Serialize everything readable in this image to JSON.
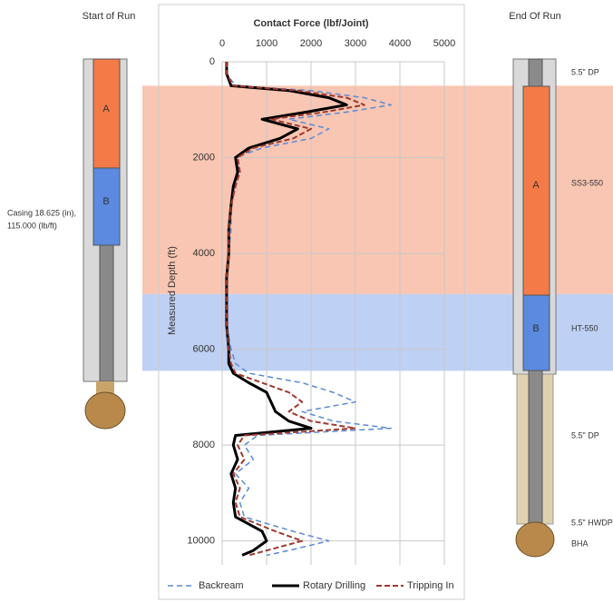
{
  "chart_data": {
    "type": "line",
    "title": "Contact Force (lbf/Joint)",
    "y_label": "Measured Depth (ft)",
    "x": [
      0,
      250,
      500,
      600,
      750,
      900,
      1050,
      1200,
      1400,
      1600,
      1800,
      2000,
      2300,
      2600,
      3000,
      3500,
      4000,
      4500,
      5000,
      5500,
      6000,
      6300,
      6500,
      6700,
      6900,
      7100,
      7300,
      7500,
      7650,
      7800,
      8000,
      8300,
      8600,
      8900,
      9200,
      9500,
      9800,
      10000,
      10200,
      10300
    ],
    "series": [
      {
        "name": "Backream",
        "color": "#5b8bd6",
        "values": [
          100,
          100,
          300,
          2000,
          3200,
          3800,
          2800,
          1500,
          2400,
          2000,
          900,
          300,
          400,
          300,
          200,
          200,
          150,
          100,
          100,
          100,
          200,
          300,
          600,
          1800,
          2500,
          3000,
          1800,
          2500,
          3800,
          800,
          500,
          700,
          300,
          600,
          400,
          500,
          1600,
          2400,
          1500,
          1000
        ]
      },
      {
        "name": "Rotary Drilling",
        "color": "#000000",
        "values": [
          100,
          100,
          200,
          1500,
          2400,
          2800,
          1900,
          900,
          1700,
          1300,
          600,
          300,
          350,
          250,
          200,
          150,
          150,
          100,
          100,
          100,
          150,
          150,
          250,
          600,
          1000,
          1100,
          1200,
          1500,
          2000,
          300,
          250,
          350,
          200,
          300,
          250,
          300,
          900,
          1000,
          700,
          450
        ]
      },
      {
        "name": "Tripping In",
        "color": "#a0392f",
        "values": [
          100,
          100,
          250,
          1700,
          2800,
          3200,
          2300,
          1100,
          2000,
          1600,
          700,
          350,
          400,
          300,
          200,
          150,
          150,
          100,
          100,
          100,
          150,
          200,
          300,
          900,
          1500,
          1800,
          1500,
          2000,
          3000,
          500,
          350,
          500,
          250,
          400,
          300,
          400,
          1200,
          1800,
          1000,
          600
        ]
      }
    ],
    "force_lim": [
      0,
      5000
    ],
    "force_ticks": [
      0,
      1000,
      2000,
      3000,
      4000,
      5000
    ],
    "depth_lim": [
      0,
      10500
    ],
    "depth_ticks": [
      0,
      2000,
      4000,
      6000,
      8000,
      10000
    ],
    "grid": true,
    "bands": [
      {
        "from": 500,
        "to": 4850,
        "color": "#f8c6b2"
      },
      {
        "from": 4850,
        "to": 6450,
        "color": "#bed0f3"
      }
    ]
  },
  "diagram": {
    "start_title": "Start of Run",
    "end_title": "End Of Run",
    "casing_label": [
      "Casing 18.625 (in),",
      "115.000 (lb/ft)"
    ],
    "left_sections": [
      "A",
      "B"
    ],
    "right_sections": [
      "A",
      "B"
    ],
    "right_labels": [
      "5.5\" DP",
      "SS3-550",
      "HT-550",
      "5.5\" DP",
      "5.5\" HWDP",
      "BHA"
    ]
  }
}
